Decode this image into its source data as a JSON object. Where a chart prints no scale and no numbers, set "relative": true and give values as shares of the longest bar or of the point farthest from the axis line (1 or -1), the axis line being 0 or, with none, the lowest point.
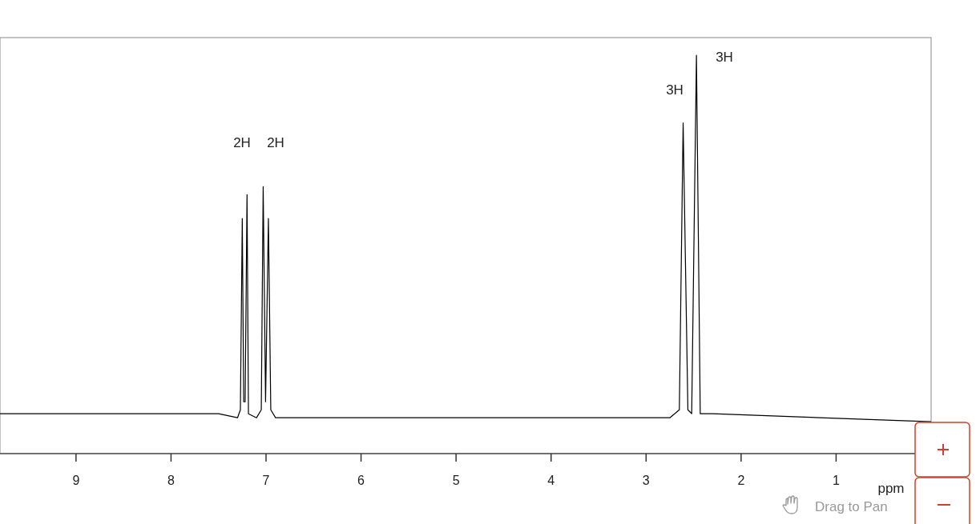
{
  "chart_data": {
    "type": "line",
    "xlabel": "ppm",
    "relative": true,
    "xlim": [
      9.8,
      0
    ],
    "xticks": [
      9,
      8,
      7,
      6,
      5,
      4,
      3,
      2,
      1
    ],
    "series": [
      {
        "color": "#000000",
        "x": [
          9.8,
          7.5,
          7.3,
          7.27,
          7.25,
          7.235,
          7.22,
          7.2,
          7.185,
          7.1,
          7.05,
          7.03,
          7.005,
          6.975,
          6.95,
          6.9,
          5,
          3.5,
          2.75,
          2.65,
          2.61,
          2.56,
          2.52,
          2.47,
          2.43,
          2.3,
          0
        ],
        "values": [
          0.1,
          0.1,
          0.09,
          0.11,
          0.59,
          0.13,
          0.13,
          0.65,
          0.1,
          0.09,
          0.11,
          0.67,
          0.13,
          0.59,
          0.11,
          0.09,
          0.09,
          0.09,
          0.09,
          0.11,
          0.83,
          0.11,
          0.1,
          1,
          0.1,
          0.1,
          0.08
        ]
      }
    ],
    "annotations": [
      "2H",
      "2H",
      "3H",
      "3H",
      "Drag to Pan"
    ]
  }
}
